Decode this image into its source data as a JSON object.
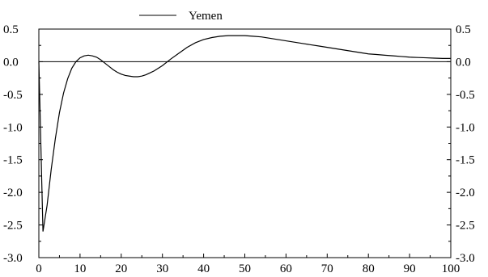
{
  "chart_data": {
    "type": "line",
    "title": "",
    "xlabel": "",
    "ylabel": "",
    "xlim": [
      0,
      100
    ],
    "ylim": [
      -3.0,
      0.5
    ],
    "x_ticks": [
      0,
      10,
      20,
      30,
      40,
      50,
      60,
      70,
      80,
      90,
      100
    ],
    "y_ticks": [
      0.5,
      0.0,
      -0.5,
      -1.0,
      -1.5,
      -2.0,
      -2.5,
      -3.0
    ],
    "x_tick_labels": [
      "0",
      "10",
      "20",
      "30",
      "40",
      "50",
      "60",
      "70",
      "80",
      "90",
      "100"
    ],
    "y_tick_labels": [
      "0.5",
      "0.0",
      "-0.5",
      "-1.0",
      "-1.5",
      "-2.0",
      "-2.5",
      "-3.0"
    ],
    "zero_line": true,
    "grid": false,
    "legend": {
      "position": "top-center",
      "entries": [
        "Yemen"
      ]
    },
    "series": [
      {
        "name": "Yemen",
        "color": "#000000",
        "x": [
          0,
          1,
          2,
          3,
          4,
          5,
          6,
          7,
          8,
          9,
          10,
          11,
          12,
          13,
          14,
          15,
          16,
          17,
          18,
          19,
          20,
          21,
          22,
          23,
          24,
          25,
          26,
          27,
          28,
          29,
          30,
          32,
          34,
          36,
          38,
          40,
          42,
          44,
          46,
          48,
          50,
          52,
          54,
          56,
          58,
          60,
          62,
          64,
          66,
          68,
          70,
          72,
          74,
          76,
          78,
          80,
          82,
          84,
          86,
          88,
          90,
          92,
          94,
          96,
          98,
          100
        ],
        "y": [
          0.0,
          -2.6,
          -2.2,
          -1.65,
          -1.18,
          -0.78,
          -0.48,
          -0.26,
          -0.1,
          0.0,
          0.06,
          0.09,
          0.1,
          0.09,
          0.07,
          0.03,
          -0.02,
          -0.07,
          -0.12,
          -0.16,
          -0.19,
          -0.21,
          -0.22,
          -0.23,
          -0.23,
          -0.22,
          -0.2,
          -0.17,
          -0.14,
          -0.1,
          -0.06,
          0.04,
          0.13,
          0.22,
          0.29,
          0.34,
          0.37,
          0.39,
          0.4,
          0.4,
          0.4,
          0.39,
          0.38,
          0.36,
          0.34,
          0.32,
          0.3,
          0.28,
          0.26,
          0.24,
          0.22,
          0.2,
          0.18,
          0.16,
          0.14,
          0.12,
          0.11,
          0.1,
          0.09,
          0.08,
          0.07,
          0.065,
          0.06,
          0.055,
          0.05,
          0.05
        ]
      }
    ]
  }
}
